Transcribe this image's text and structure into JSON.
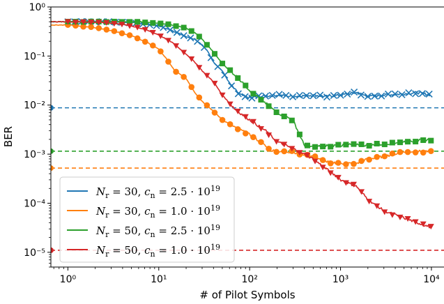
{
  "chart_data": {
    "type": "line",
    "xlabel": "# of Pilot Symbols",
    "ylabel": "BER",
    "xscale": "log",
    "yscale": "log",
    "xlim": [
      0.65,
      14000
    ],
    "ylim": [
      5e-06,
      1
    ],
    "xticks": [
      {
        "value": 1,
        "label": "10⁰"
      },
      {
        "value": 10,
        "label": "10¹"
      },
      {
        "value": 100,
        "label": "10²"
      },
      {
        "value": 1000,
        "label": "10³"
      },
      {
        "value": 10000,
        "label": "10⁴"
      }
    ],
    "yticks": [
      {
        "value": 1e-05,
        "label": "10⁻⁵"
      },
      {
        "value": 0.0001,
        "label": "10⁻⁴"
      },
      {
        "value": 0.001,
        "label": "10⁻³"
      },
      {
        "value": 0.01,
        "label": "10⁻²"
      },
      {
        "value": 0.1,
        "label": "10⁻¹"
      },
      {
        "value": 1,
        "label": "10⁰"
      }
    ],
    "legend_position": "lower-left",
    "series": [
      {
        "name": "N_r = 30, c_n = 2.5 · 10^19",
        "legend_parts": {
          "a": "N",
          "a_sub": "r",
          "b": " = 30, ",
          "c": "c",
          "c_sub": "n",
          "d": " = 2.5 · 10",
          "d_sup": "19"
        },
        "color": "#1f77b4",
        "marker": "x",
        "hline": 0.0088,
        "points": [
          [
            0.65,
            0.5
          ],
          [
            1,
            0.5
          ],
          [
            2,
            0.5
          ],
          [
            3,
            0.5
          ],
          [
            4,
            0.49
          ],
          [
            5,
            0.48
          ],
          [
            7,
            0.45
          ],
          [
            10,
            0.41
          ],
          [
            14,
            0.33
          ],
          [
            20,
            0.25
          ],
          [
            25,
            0.22
          ],
          [
            30,
            0.17
          ],
          [
            35,
            0.12
          ],
          [
            40,
            0.075
          ],
          [
            50,
            0.05
          ],
          [
            60,
            0.028
          ],
          [
            70,
            0.02
          ],
          [
            80,
            0.016
          ],
          [
            100,
            0.014
          ],
          [
            130,
            0.015
          ],
          [
            200,
            0.016
          ],
          [
            300,
            0.015
          ],
          [
            500,
            0.016
          ],
          [
            700,
            0.015
          ],
          [
            1000,
            0.016
          ],
          [
            1500,
            0.018
          ],
          [
            2000,
            0.015
          ],
          [
            3000,
            0.016
          ],
          [
            5000,
            0.017
          ],
          [
            7000,
            0.018
          ],
          [
            10000,
            0.016
          ]
        ]
      },
      {
        "name": "N_r = 30, c_n = 1.0 · 10^19",
        "legend_parts": {
          "a": "N",
          "a_sub": "r",
          "b": " = 30, ",
          "c": "c",
          "c_sub": "n",
          "d": " = 1.0 · 10",
          "d_sup": "19"
        },
        "color": "#ff7f0e",
        "marker": "o",
        "hline": 0.00052,
        "points": [
          [
            0.65,
            0.43
          ],
          [
            1,
            0.43
          ],
          [
            2,
            0.38
          ],
          [
            3,
            0.33
          ],
          [
            4,
            0.29
          ],
          [
            5,
            0.26
          ],
          [
            7,
            0.2
          ],
          [
            10,
            0.14
          ],
          [
            12,
            0.09
          ],
          [
            15,
            0.05
          ],
          [
            20,
            0.035
          ],
          [
            25,
            0.018
          ],
          [
            30,
            0.012
          ],
          [
            40,
            0.0075
          ],
          [
            50,
            0.005
          ],
          [
            70,
            0.0035
          ],
          [
            100,
            0.0025
          ],
          [
            130,
            0.0018
          ],
          [
            170,
            0.0012
          ],
          [
            200,
            0.00115
          ],
          [
            300,
            0.0011
          ],
          [
            500,
            0.0009
          ],
          [
            700,
            0.0007
          ],
          [
            1000,
            0.00065
          ],
          [
            1500,
            0.00065
          ],
          [
            2000,
            0.0008
          ],
          [
            3000,
            0.0009
          ],
          [
            5000,
            0.0011
          ],
          [
            7000,
            0.00115
          ],
          [
            10000,
            0.0011
          ]
        ]
      },
      {
        "name": "N_r = 50, c_n = 2.5 · 10^19",
        "legend_parts": {
          "a": "N",
          "a_sub": "r",
          "b": " = 50, ",
          "c": "c",
          "c_sub": "n",
          "d": " = 2.5 · 10",
          "d_sup": "19"
        },
        "color": "#2ca02c",
        "marker": "s",
        "hline": 0.00115,
        "points": [
          [
            0.65,
            0.5
          ],
          [
            1,
            0.5
          ],
          [
            2,
            0.5
          ],
          [
            3,
            0.5
          ],
          [
            5,
            0.5
          ],
          [
            7,
            0.49
          ],
          [
            10,
            0.47
          ],
          [
            14,
            0.43
          ],
          [
            20,
            0.37
          ],
          [
            25,
            0.3
          ],
          [
            30,
            0.22
          ],
          [
            40,
            0.12
          ],
          [
            50,
            0.07
          ],
          [
            70,
            0.04
          ],
          [
            100,
            0.02
          ],
          [
            150,
            0.011
          ],
          [
            200,
            0.007
          ],
          [
            300,
            0.005
          ],
          [
            400,
            0.0015
          ],
          [
            500,
            0.0014
          ],
          [
            700,
            0.0015
          ],
          [
            1000,
            0.0015
          ],
          [
            1500,
            0.0016
          ],
          [
            2000,
            0.0015
          ],
          [
            3000,
            0.0016
          ],
          [
            5000,
            0.0018
          ],
          [
            7000,
            0.0019
          ],
          [
            10000,
            0.002
          ]
        ]
      },
      {
        "name": "N_r = 50, c_n = 1.0 · 10^19",
        "legend_parts": {
          "a": "N",
          "a_sub": "r",
          "b": " = 50, ",
          "c": "c",
          "c_sub": "n",
          "d": " = 1.0 · 10",
          "d_sup": "19"
        },
        "color": "#d62728",
        "marker": "v",
        "hline": 1.1e-05,
        "points": [
          [
            0.65,
            0.5
          ],
          [
            1,
            0.5
          ],
          [
            2,
            0.49
          ],
          [
            3,
            0.47
          ],
          [
            4,
            0.44
          ],
          [
            5,
            0.41
          ],
          [
            7,
            0.35
          ],
          [
            10,
            0.27
          ],
          [
            14,
            0.19
          ],
          [
            20,
            0.11
          ],
          [
            25,
            0.075
          ],
          [
            30,
            0.05
          ],
          [
            40,
            0.03
          ],
          [
            50,
            0.016
          ],
          [
            70,
            0.008
          ],
          [
            100,
            0.005
          ],
          [
            150,
            0.003
          ],
          [
            200,
            0.0018
          ],
          [
            300,
            0.0013
          ],
          [
            500,
            0.0008
          ],
          [
            700,
            0.0005
          ],
          [
            1000,
            0.0003
          ],
          [
            1500,
            0.00022
          ],
          [
            2000,
            0.00012
          ],
          [
            3000,
            7e-05
          ],
          [
            5000,
            5e-05
          ],
          [
            7000,
            4e-05
          ],
          [
            10000,
            3.2e-05
          ]
        ]
      }
    ]
  }
}
